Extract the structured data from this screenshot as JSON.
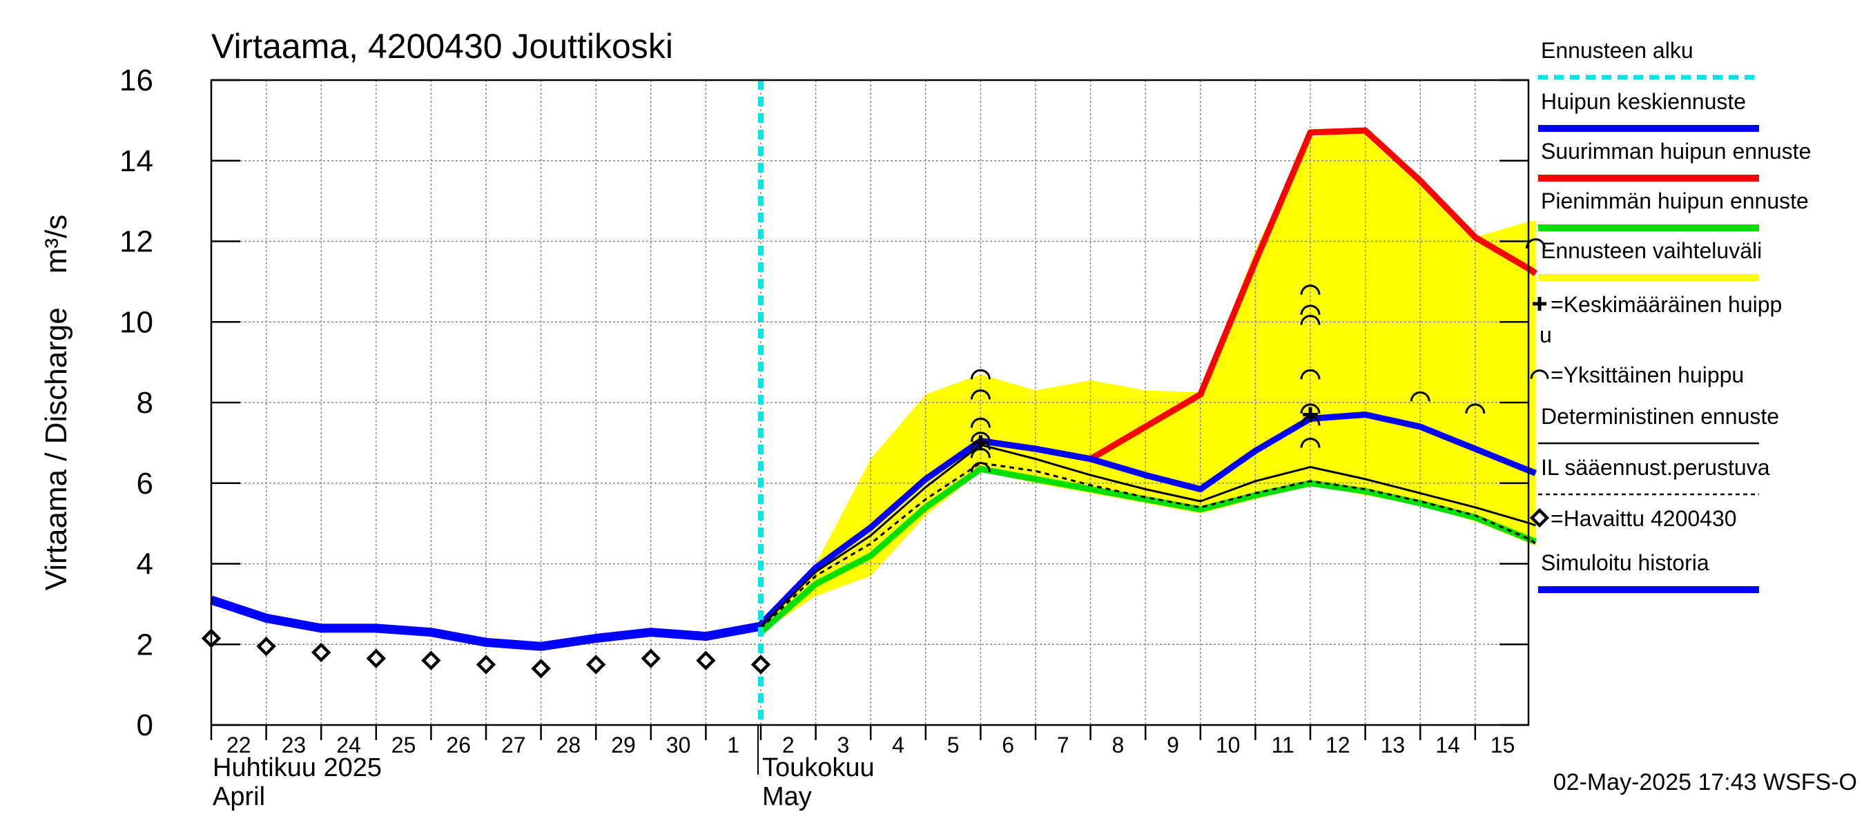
{
  "chart_data": {
    "type": "line",
    "title": "Virtaama, 4200430 Jouttikoski",
    "ylabel": "Virtaama / Discharge    m³/s",
    "ylim": [
      0,
      16
    ],
    "yticks": [
      0,
      2,
      4,
      6,
      8,
      10,
      12,
      14,
      16
    ],
    "x_day_labels": [
      "22",
      "23",
      "24",
      "25",
      "26",
      "27",
      "28",
      "29",
      "30",
      "1",
      "2",
      "3",
      "4",
      "5",
      "6",
      "7",
      "8",
      "9",
      "10",
      "11",
      "12",
      "13",
      "14",
      "15"
    ],
    "x_start_index": 0,
    "x_end_index": 24.1,
    "month_labels": [
      {
        "fi": "Huhtikuu  2025",
        "en": "April",
        "start_day_index": 0
      },
      {
        "fi": "Toukokuu",
        "en": "May",
        "start_day_index": 10
      }
    ],
    "forecast_start_index": 10,
    "timestamp": "02-May-2025 17:43 WSFS-O",
    "series": [
      {
        "name": "Ennusteen vaihteluväli",
        "kind": "band",
        "x": [
          10,
          11,
          12,
          13,
          14,
          15,
          16,
          17,
          18,
          19,
          20,
          21,
          22,
          23,
          24,
          24.1
        ],
        "upper": [
          2.5,
          4.0,
          6.6,
          8.2,
          8.7,
          8.3,
          8.55,
          8.3,
          8.25,
          11.8,
          14.6,
          14.7,
          13.5,
          12.1,
          12.5,
          12.5
        ],
        "lower": [
          2.3,
          3.2,
          3.7,
          5.2,
          6.3,
          6.0,
          5.75,
          5.5,
          5.25,
          5.6,
          5.95,
          5.7,
          5.45,
          5.05,
          4.5,
          4.45
        ]
      },
      {
        "name": "Suurimman huipun ennuste",
        "color": "#ff0000",
        "x": [
          10,
          11,
          12,
          13,
          14,
          15,
          16,
          17,
          18,
          19,
          20,
          21,
          22,
          23,
          24,
          24.1
        ],
        "values": [
          2.5,
          3.9,
          4.9,
          6.1,
          7.05,
          6.85,
          6.6,
          7.4,
          8.2,
          11.5,
          14.7,
          14.75,
          13.5,
          12.1,
          11.3,
          11.2
        ]
      },
      {
        "name": "Pienimmän huipun ennuste",
        "color": "#00e000",
        "x": [
          10,
          11,
          12,
          13,
          14,
          15,
          16,
          17,
          18,
          19,
          20,
          21,
          22,
          23,
          24,
          24.1
        ],
        "values": [
          2.3,
          3.5,
          4.2,
          5.4,
          6.35,
          6.1,
          5.85,
          5.6,
          5.35,
          5.7,
          6.0,
          5.8,
          5.5,
          5.15,
          4.6,
          4.55
        ]
      },
      {
        "name": "Huipun keskiennuste",
        "color": "#0000ff",
        "x": [
          10,
          11,
          12,
          13,
          14,
          15,
          16,
          17,
          18,
          19,
          20,
          21,
          22,
          23,
          24,
          24.1
        ],
        "values": [
          2.5,
          3.9,
          4.9,
          6.1,
          7.05,
          6.85,
          6.6,
          6.2,
          5.85,
          6.8,
          7.6,
          7.7,
          7.4,
          6.85,
          6.3,
          6.25
        ]
      },
      {
        "name": "Deterministinen ennuste",
        "color": "#000000",
        "x": [
          10,
          11,
          12,
          13,
          14,
          15,
          16,
          17,
          18,
          19,
          20,
          21,
          22,
          23,
          24,
          24.1
        ],
        "values": [
          2.45,
          3.8,
          4.7,
          5.9,
          6.95,
          6.6,
          6.2,
          5.85,
          5.55,
          6.05,
          6.4,
          6.1,
          5.75,
          5.4,
          5.0,
          4.95
        ]
      },
      {
        "name": "IL sääennust.perustuva",
        "color": "#000000",
        "dashed": true,
        "x": [
          10,
          11,
          12,
          13,
          14,
          15,
          16,
          17,
          18,
          19,
          20,
          21,
          22,
          23,
          24,
          24.1
        ],
        "values": [
          2.4,
          3.7,
          4.5,
          5.6,
          6.5,
          6.3,
          5.95,
          5.65,
          5.4,
          5.75,
          6.05,
          5.85,
          5.55,
          5.2,
          4.6,
          4.5
        ]
      },
      {
        "name": "Simuloitu historia",
        "color": "#0000ff",
        "x": [
          0,
          1,
          2,
          3,
          4,
          5,
          6,
          7,
          8,
          9,
          10
        ],
        "values": [
          3.1,
          2.65,
          2.4,
          2.4,
          2.3,
          2.05,
          1.95,
          2.15,
          2.3,
          2.2,
          2.45
        ]
      }
    ],
    "observed": {
      "name": "=Havaittu 4200430",
      "x": [
        0,
        1,
        2,
        3,
        4,
        5,
        6,
        7,
        8,
        9,
        10
      ],
      "values": [
        2.15,
        1.95,
        1.8,
        1.65,
        1.6,
        1.5,
        1.4,
        1.5,
        1.65,
        1.6,
        1.5
      ]
    },
    "individual_peaks": {
      "name": "=Yksittäinen huippu",
      "points": [
        {
          "x": 14,
          "y": 8.7
        },
        {
          "x": 14,
          "y": 8.2
        },
        {
          "x": 14,
          "y": 7.5
        },
        {
          "x": 14,
          "y": 7.15
        },
        {
          "x": 14,
          "y": 6.95
        },
        {
          "x": 14,
          "y": 6.75
        },
        {
          "x": 14,
          "y": 6.4
        },
        {
          "x": 20,
          "y": 10.8
        },
        {
          "x": 20,
          "y": 10.3
        },
        {
          "x": 20,
          "y": 10.05
        },
        {
          "x": 20,
          "y": 8.7
        },
        {
          "x": 20,
          "y": 7.85
        },
        {
          "x": 20,
          "y": 7.55
        },
        {
          "x": 20,
          "y": 7.0
        },
        {
          "x": 22,
          "y": 8.15
        },
        {
          "x": 23,
          "y": 7.85
        },
        {
          "x": 24.1,
          "y": 11.95
        }
      ]
    },
    "mean_peaks": {
      "name": "=Keskimääräinen huipp\nu",
      "points": [
        {
          "x": 14,
          "y": 7.0
        },
        {
          "x": 20,
          "y": 7.7
        }
      ]
    },
    "legend": [
      {
        "label": "Ennusteen alku",
        "style": "dashed",
        "color": "#00e5e5"
      },
      {
        "label": "Huipun keskiennuste",
        "style": "line",
        "color": "#0000ff"
      },
      {
        "label": "Suurimman huipun ennuste",
        "style": "line",
        "color": "#ff0000"
      },
      {
        "label": "Pienimmän huipun ennuste",
        "style": "line",
        "color": "#00e000"
      },
      {
        "label": "Ennusteen vaihteluväli",
        "style": "line",
        "color": "#ffff00"
      },
      {
        "label": "=Keskimääräinen huipp",
        "label2": "u",
        "style": "plus",
        "color": "#000000"
      },
      {
        "label": "=Yksittäinen huippu",
        "style": "arc",
        "color": "#000000"
      },
      {
        "label": "Deterministinen ennuste",
        "style": "thin",
        "color": "#000000"
      },
      {
        "label": "IL sääennust.perustuva",
        "style": "dotted",
        "color": "#000000"
      },
      {
        "label": "=Havaittu 4200430",
        "style": "diamond",
        "color": "#000000"
      },
      {
        "label": "Simuloitu historia",
        "style": "line",
        "color": "#0000ff"
      }
    ]
  }
}
